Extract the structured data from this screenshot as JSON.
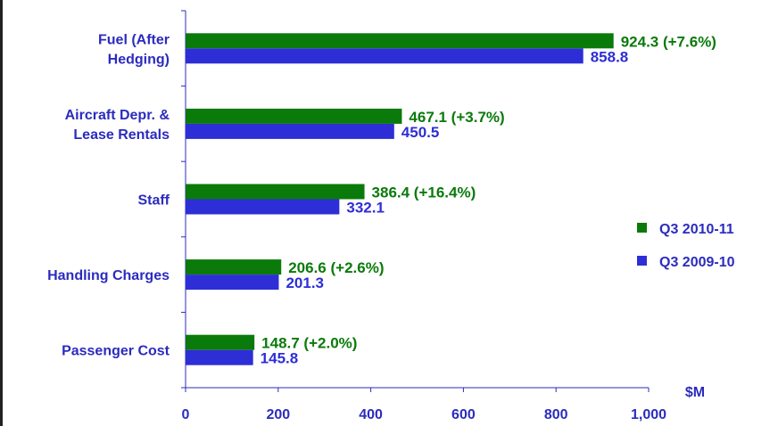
{
  "chart_data": {
    "type": "bar",
    "orientation": "horizontal",
    "categories": [
      [
        "Fuel (After",
        "Hedging)"
      ],
      [
        "Aircraft Depr. &",
        "Lease Rentals"
      ],
      [
        "Staff"
      ],
      [
        "Handling Charges"
      ],
      [
        "Passenger Cost"
      ]
    ],
    "series": [
      {
        "name": "Q3 2010-11",
        "color": "#0a7a0a",
        "values": [
          924.3,
          467.1,
          386.4,
          206.6,
          148.7
        ],
        "labels": [
          "924.3 (+7.6%)",
          "467.1 (+3.7%)",
          "386.4 (+16.4%)",
          "206.6 (+2.6%)",
          "148.7 (+2.0%)"
        ]
      },
      {
        "name": "Q3 2009-10",
        "color": "#2e2ed6",
        "values": [
          858.8,
          450.5,
          332.1,
          201.3,
          145.8
        ],
        "labels": [
          "858.8",
          "450.5",
          "332.1",
          "201.3",
          "145.8"
        ]
      }
    ],
    "xlim": [
      0,
      1000
    ],
    "xticks": [
      "0",
      "200",
      "400",
      "600",
      "800",
      "1,000"
    ],
    "xunit": "$M",
    "legend_position": "right",
    "grid": false
  }
}
